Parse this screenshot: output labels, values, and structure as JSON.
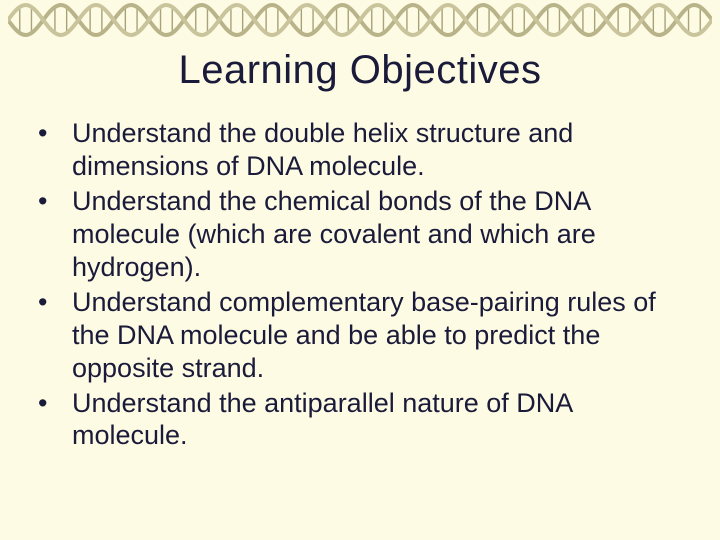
{
  "banner": {
    "strand_color_a": "#b9b38a",
    "strand_color_b": "#c9c49c",
    "rung_color": "#a8a278",
    "background": "#fdfbe3",
    "periods": 10
  },
  "title": "Learning Objectives",
  "title_fontsize": 40,
  "body_fontsize": 27,
  "text_color": "#1a1a3a",
  "bullet_glyph": "•",
  "objectives": [
    "Understand the double helix structure and dimensions of DNA molecule.",
    "Understand the chemical bonds of the DNA molecule (which are covalent and which are hydrogen).",
    "Understand complementary base-pairing rules of the DNA molecule and be able to predict the opposite strand.",
    "Understand the antiparallel nature of DNA molecule."
  ]
}
